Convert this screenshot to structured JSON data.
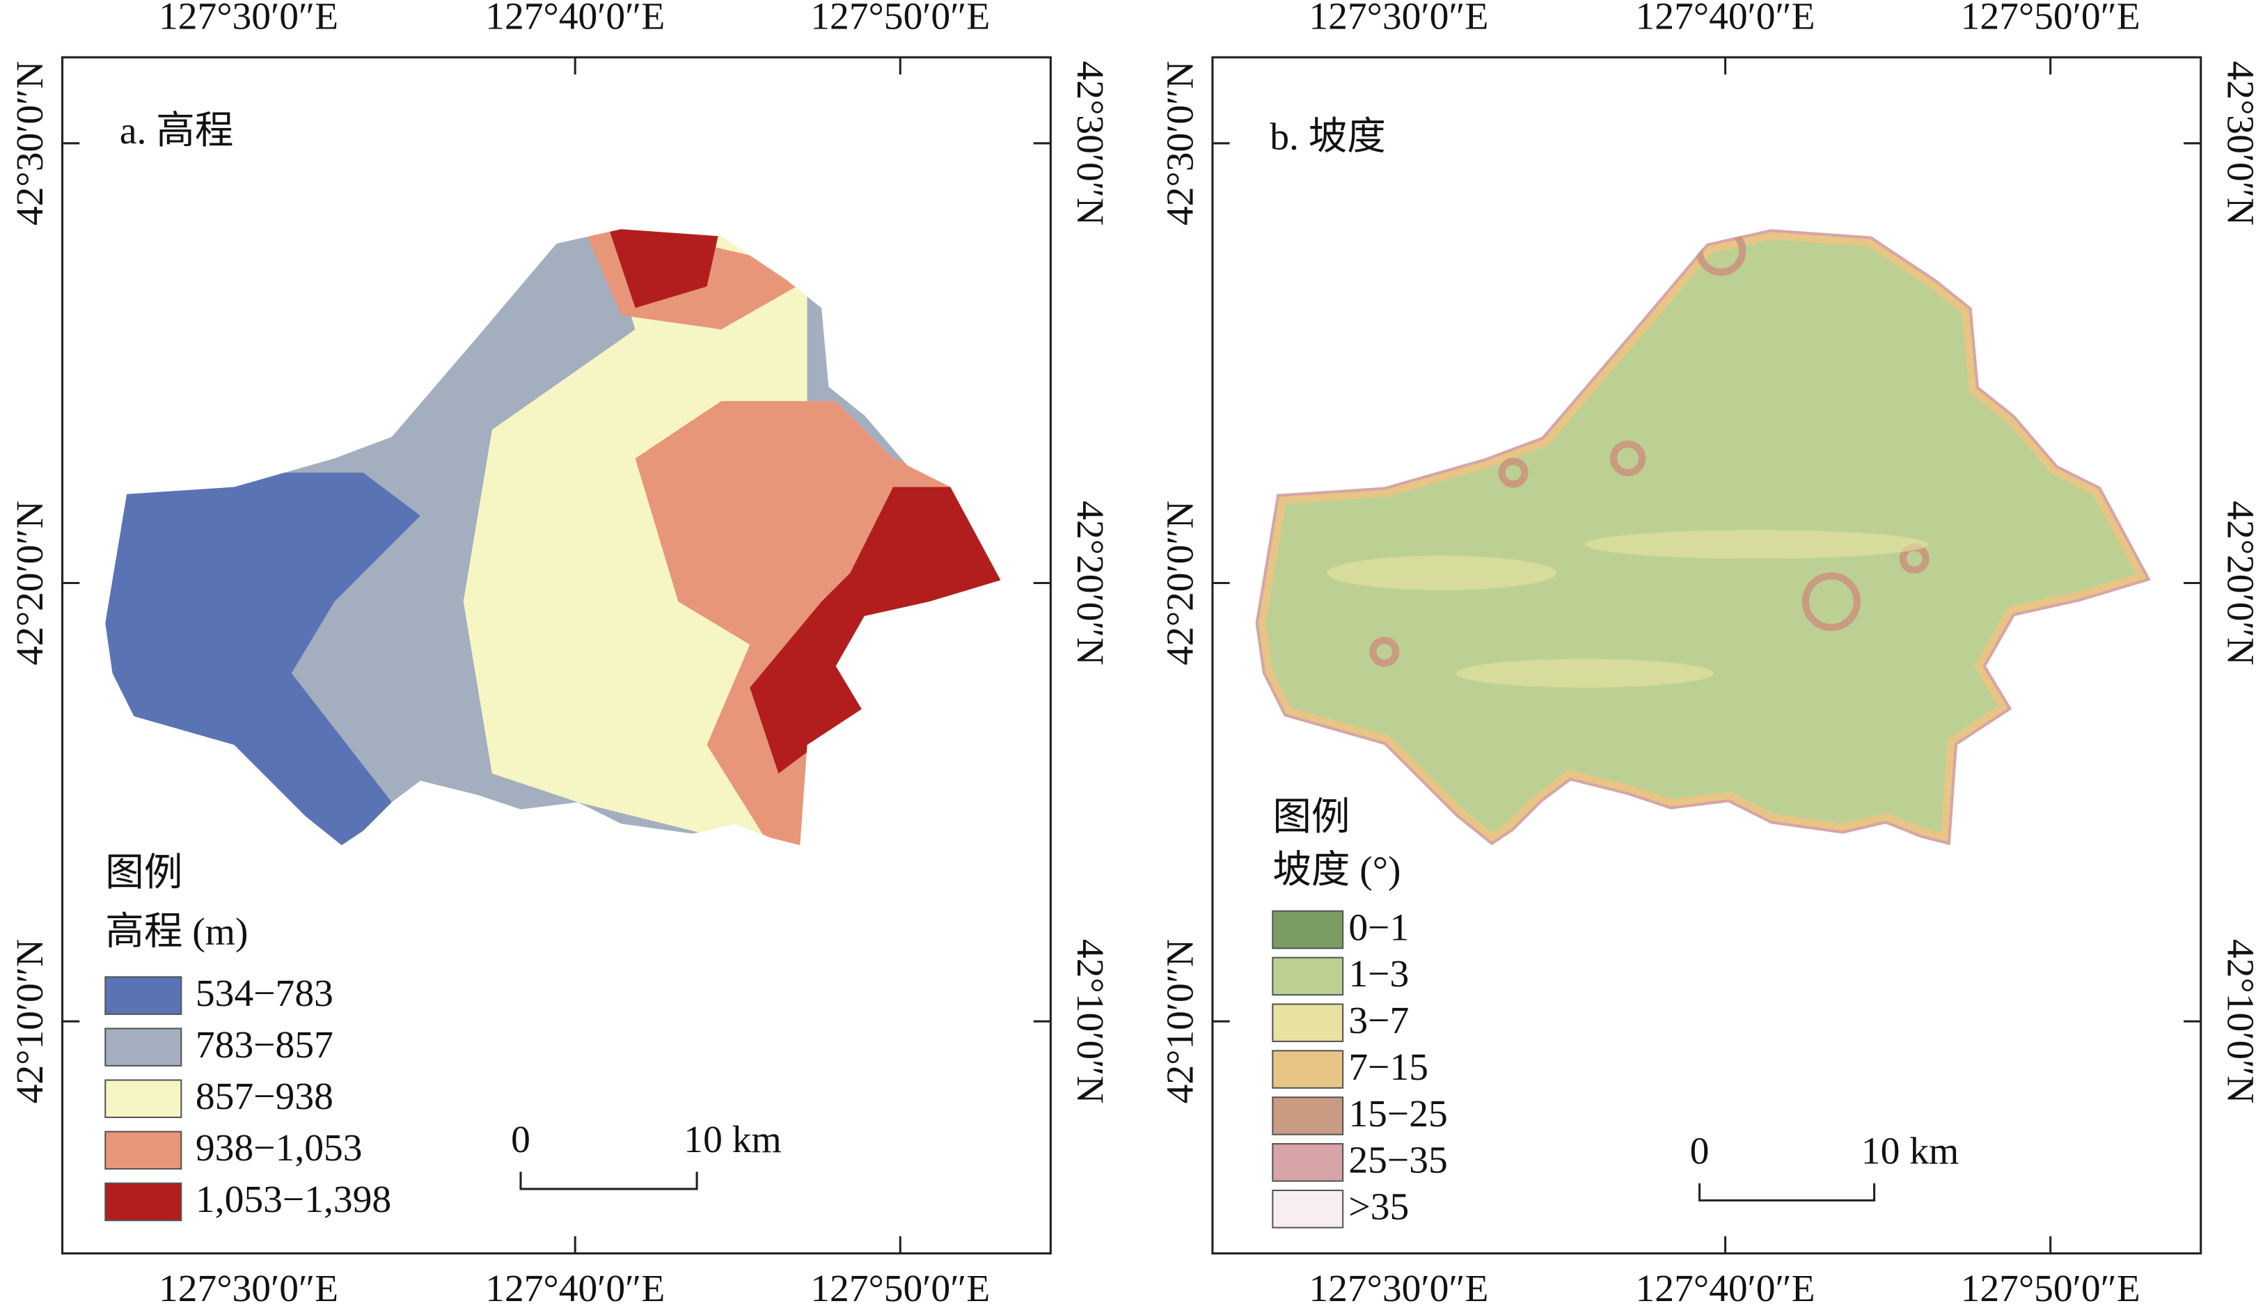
{
  "panels": [
    {
      "title": "a. 高程",
      "x_labels": [
        "127°30′0″E",
        "127°40′0″E",
        "127°50′0″E"
      ],
      "y_labels": [
        "42°30′0″N",
        "42°20′0″N",
        "42°10′0″N"
      ],
      "legend": {
        "title": "图例",
        "subtitle": "高程 (m)",
        "items": [
          {
            "label": "534−783",
            "color": "#5a73b4"
          },
          {
            "label": "783−857",
            "color": "#a3afbf"
          },
          {
            "label": "857−938",
            "color": "#f6f6c4"
          },
          {
            "label": "938−1,053",
            "color": "#e8967a"
          },
          {
            "label": "1,053−1,398",
            "color": "#b21e1e"
          }
        ]
      },
      "scale": {
        "start": "0",
        "end": "10 km"
      }
    },
    {
      "title": "b. 坡度",
      "x_labels": [
        "127°30′0″E",
        "127°40′0″E",
        "127°50′0″E"
      ],
      "y_labels": [
        "42°30′0″N",
        "42°20′0″N",
        "42°10′0″N"
      ],
      "legend": {
        "title": "图例",
        "subtitle": "坡度 (°)",
        "items": [
          {
            "label": "0−1",
            "color": "#7a9c62"
          },
          {
            "label": "1−3",
            "color": "#bdd094"
          },
          {
            "label": "3−7",
            "color": "#e8e2a0"
          },
          {
            "label": "7−15",
            "color": "#e9c585"
          },
          {
            "label": "15−25",
            "color": "#c99b80"
          },
          {
            "label": "25−35",
            "color": "#d7a5a7"
          },
          {
            "label": ">35",
            "color": "#f8edf0"
          }
        ]
      },
      "scale": {
        "start": "0",
        "end": "10 km"
      }
    }
  ]
}
